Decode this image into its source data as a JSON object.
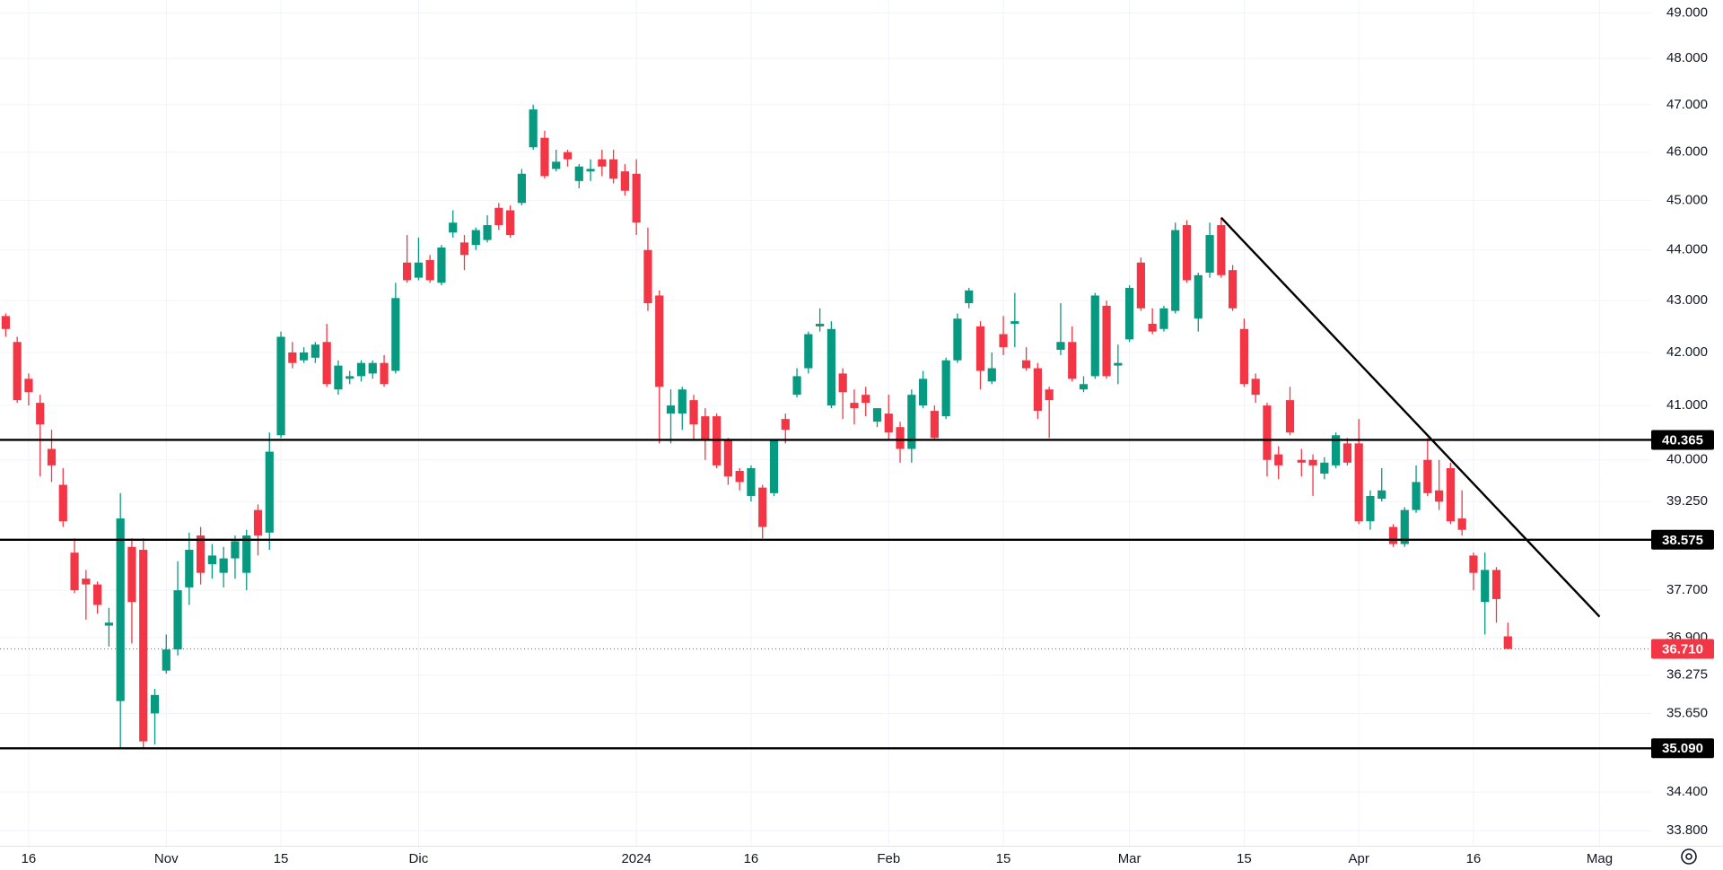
{
  "chart_data": {
    "type": "candlestick",
    "log_scale": true,
    "grid": true,
    "up_color": "#089981",
    "down_color": "#f23645",
    "categories": [
      null,
      null,
      "16",
      null,
      null,
      null,
      null,
      null,
      null,
      null,
      null,
      null,
      null,
      null,
      "Nov",
      null,
      null,
      null,
      null,
      null,
      null,
      null,
      null,
      null,
      "15",
      null,
      null,
      null,
      null,
      null,
      null,
      null,
      null,
      null,
      null,
      null,
      "Dic",
      null,
      null,
      null,
      null,
      null,
      null,
      null,
      null,
      null,
      null,
      null,
      null,
      null,
      null,
      null,
      null,
      null,
      null,
      "2024",
      null,
      null,
      null,
      null,
      null,
      null,
      null,
      null,
      null,
      "16",
      null,
      null,
      null,
      null,
      null,
      null,
      null,
      null,
      null,
      null,
      null,
      "Feb",
      null,
      null,
      null,
      null,
      null,
      null,
      null,
      null,
      null,
      "15",
      null,
      null,
      null,
      null,
      null,
      null,
      null,
      null,
      null,
      null,
      "Mar",
      null,
      null,
      null,
      null,
      null,
      null,
      null,
      null,
      null,
      "15",
      null,
      null,
      null,
      null,
      null,
      null,
      null,
      null,
      null,
      "Apr",
      null,
      null,
      null,
      null,
      null,
      null,
      null,
      null,
      null,
      "16",
      null,
      null,
      null,
      null,
      null,
      null,
      null,
      null,
      null,
      null,
      "Mag",
      null,
      null,
      null,
      null
    ],
    "open": [
      42.7,
      42.2,
      41.5,
      41.05,
      40.2,
      39.55,
      38.35,
      37.9,
      37.8,
      37.1,
      35.85,
      38.45,
      38.4,
      35.65,
      36.35,
      36.7,
      37.75,
      38.65,
      38.15,
      38.0,
      38.25,
      38.0,
      39.1,
      38.7,
      40.45,
      42.0,
      41.85,
      41.9,
      42.2,
      41.3,
      41.5,
      41.55,
      41.6,
      41.8,
      41.65,
      43.75,
      43.45,
      43.8,
      43.35,
      44.35,
      44.15,
      44.1,
      44.2,
      44.85,
      44.8,
      44.95,
      46.1,
      46.3,
      45.65,
      46.0,
      45.4,
      45.6,
      45.85,
      45.85,
      45.6,
      45.55,
      44.0,
      43.1,
      40.85,
      40.85,
      41.1,
      40.8,
      40.8,
      40.35,
      39.8,
      39.35,
      39.5,
      39.4,
      40.75,
      41.2,
      41.7,
      42.5,
      41.0,
      41.6,
      41.05,
      41.2,
      40.7,
      40.85,
      40.6,
      40.2,
      41.0,
      40.9,
      40.8,
      41.85,
      42.95,
      42.5,
      41.45,
      42.35,
      42.55,
      41.85,
      41.7,
      41.3,
      42.05,
      42.2,
      41.3,
      41.55,
      42.9,
      41.75,
      42.25,
      43.75,
      42.55,
      42.45,
      42.8,
      44.5,
      42.65,
      43.55,
      44.5,
      43.6,
      42.45,
      41.5,
      41.0,
      40.1,
      41.1,
      40.0,
      40.0,
      39.75,
      39.9,
      40.3,
      40.3,
      38.9,
      39.3,
      38.8,
      38.5,
      39.1,
      40.0,
      39.45,
      39.85,
      38.95,
      38.3,
      37.5,
      38.05,
      36.92,
      null,
      null,
      null,
      null,
      null,
      null,
      null,
      null,
      null,
      null,
      null,
      null
    ],
    "high": [
      42.75,
      42.3,
      41.6,
      41.2,
      40.55,
      39.85,
      38.6,
      38.05,
      37.85,
      37.4,
      39.4,
      38.6,
      38.6,
      36.05,
      36.95,
      38.2,
      38.7,
      38.8,
      38.5,
      38.45,
      38.65,
      38.75,
      39.2,
      40.5,
      42.4,
      42.2,
      42.1,
      42.2,
      42.55,
      41.85,
      41.65,
      41.85,
      41.85,
      41.95,
      43.35,
      44.3,
      44.25,
      43.9,
      44.1,
      44.8,
      44.3,
      44.45,
      44.7,
      44.95,
      44.9,
      45.65,
      47.0,
      46.45,
      46.05,
      46.05,
      45.75,
      45.85,
      46.05,
      46.05,
      45.75,
      45.85,
      44.45,
      43.2,
      41.3,
      41.35,
      41.2,
      40.95,
      40.85,
      40.4,
      39.85,
      39.9,
      39.55,
      40.35,
      40.85,
      41.7,
      42.4,
      42.85,
      42.6,
      41.7,
      41.3,
      41.35,
      40.95,
      41.2,
      40.7,
      41.3,
      41.65,
      41.0,
      41.9,
      42.75,
      43.25,
      42.6,
      42.0,
      42.7,
      43.15,
      42.1,
      41.8,
      41.35,
      42.95,
      42.5,
      41.55,
      43.15,
      43.0,
      42.15,
      43.3,
      43.85,
      42.85,
      42.9,
      44.55,
      44.6,
      43.55,
      44.55,
      44.65,
      43.7,
      42.65,
      41.6,
      41.05,
      40.25,
      41.35,
      40.2,
      40.1,
      40.05,
      40.5,
      40.4,
      40.75,
      39.45,
      39.85,
      38.85,
      39.15,
      39.9,
      40.4,
      40.0,
      39.95,
      39.45,
      38.35,
      38.35,
      38.1,
      37.15,
      null,
      null,
      null,
      null,
      null,
      null,
      null,
      null,
      null,
      null,
      null,
      null
    ],
    "low": [
      42.3,
      41.05,
      41.0,
      39.7,
      39.6,
      38.8,
      37.65,
      37.2,
      37.3,
      36.75,
      35.1,
      36.8,
      35.1,
      35.15,
      36.3,
      36.6,
      37.45,
      37.8,
      37.9,
      37.75,
      37.9,
      37.7,
      38.3,
      38.4,
      40.4,
      41.7,
      41.8,
      41.8,
      41.35,
      41.2,
      41.4,
      41.45,
      41.5,
      41.35,
      41.6,
      43.35,
      43.4,
      43.35,
      43.3,
      44.25,
      43.6,
      44.0,
      44.15,
      44.4,
      44.25,
      44.9,
      46.05,
      45.45,
      45.6,
      45.7,
      45.25,
      45.4,
      45.5,
      45.35,
      45.1,
      44.3,
      42.8,
      40.3,
      40.3,
      40.55,
      40.35,
      40.0,
      39.85,
      39.55,
      39.45,
      39.25,
      38.6,
      39.35,
      40.3,
      41.15,
      41.6,
      42.4,
      40.95,
      40.75,
      40.65,
      40.8,
      40.6,
      40.35,
      39.95,
      39.95,
      40.95,
      40.35,
      40.75,
      41.8,
      42.85,
      41.3,
      41.4,
      41.95,
      42.1,
      41.65,
      40.75,
      40.4,
      41.95,
      41.45,
      41.25,
      41.5,
      41.5,
      41.4,
      42.2,
      42.8,
      42.35,
      42.4,
      42.75,
      43.35,
      42.4,
      43.45,
      43.45,
      42.8,
      41.35,
      41.05,
      39.7,
      39.65,
      40.45,
      39.7,
      39.35,
      39.65,
      39.85,
      39.9,
      38.85,
      38.75,
      39.25,
      38.45,
      38.45,
      39.05,
      39.35,
      39.1,
      38.85,
      38.65,
      37.7,
      36.95,
      37.15,
      36.7,
      null,
      null,
      null,
      null,
      null,
      null,
      null,
      null,
      null,
      null,
      null,
      null
    ],
    "close": [
      42.45,
      41.1,
      41.25,
      40.65,
      39.9,
      38.9,
      37.7,
      37.8,
      37.45,
      37.15,
      38.95,
      37.5,
      35.2,
      35.95,
      36.7,
      37.7,
      38.4,
      38.0,
      38.3,
      38.25,
      38.55,
      38.65,
      38.65,
      40.15,
      42.3,
      41.8,
      42.0,
      42.15,
      41.4,
      41.75,
      41.55,
      41.8,
      41.8,
      41.4,
      43.05,
      43.4,
      43.75,
      43.4,
      44.05,
      44.55,
      43.9,
      44.4,
      44.5,
      44.5,
      44.3,
      45.55,
      46.9,
      45.5,
      45.8,
      45.85,
      45.7,
      45.65,
      45.7,
      45.45,
      45.2,
      44.55,
      42.95,
      41.35,
      41.0,
      41.3,
      40.65,
      40.35,
      39.9,
      39.7,
      39.6,
      39.85,
      38.8,
      40.35,
      40.55,
      41.55,
      42.35,
      42.55,
      42.45,
      41.25,
      40.95,
      41.05,
      40.95,
      40.5,
      40.2,
      41.2,
      41.5,
      40.4,
      41.85,
      42.65,
      43.2,
      41.65,
      41.7,
      42.1,
      42.6,
      41.7,
      40.9,
      41.1,
      42.2,
      41.5,
      41.4,
      43.1,
      41.55,
      41.8,
      43.25,
      42.85,
      42.4,
      42.85,
      44.4,
      43.4,
      43.5,
      44.3,
      43.5,
      42.85,
      41.4,
      41.2,
      40.0,
      39.9,
      40.5,
      39.95,
      39.9,
      39.95,
      40.45,
      39.95,
      38.9,
      39.35,
      39.45,
      38.5,
      39.1,
      39.6,
      39.4,
      39.25,
      38.9,
      38.75,
      38.0,
      38.05,
      37.55,
      36.71,
      null,
      null,
      null,
      null,
      null,
      null,
      null,
      null,
      null,
      null,
      null,
      null
    ],
    "ylim": [
      33.57,
      49.29
    ],
    "yticks": [
      {
        "value": 49,
        "label": "49.000"
      },
      {
        "value": 48,
        "label": "48.000"
      },
      {
        "value": 47,
        "label": "47.000"
      },
      {
        "value": 46,
        "label": "46.000"
      },
      {
        "value": 45,
        "label": "45.000"
      },
      {
        "value": 44,
        "label": "44.000"
      },
      {
        "value": 43,
        "label": "43.000"
      },
      {
        "value": 42,
        "label": "42.000"
      },
      {
        "value": 41,
        "label": "41.000"
      },
      {
        "value": 40,
        "label": "40.000"
      },
      {
        "value": 39.25,
        "label": "39.250"
      },
      {
        "value": 37.7,
        "label": "37.700"
      },
      {
        "value": 36.9,
        "label": "36.900"
      },
      {
        "value": 36.275,
        "label": "36.275"
      },
      {
        "value": 35.65,
        "label": "35.650"
      },
      {
        "value": 34.4,
        "label": "34.400"
      },
      {
        "value": 33.8,
        "label": "33.800"
      }
    ],
    "levels": [
      {
        "value": 40.365,
        "label": "40.365"
      },
      {
        "value": 38.575,
        "label": "38.575"
      },
      {
        "value": 35.09,
        "label": "35.090"
      }
    ],
    "level_color": "#000000",
    "last_price": {
      "value": 36.71,
      "label": "36.710"
    },
    "trend_line": {
      "x": [
        106,
        139
      ],
      "y": [
        44.65,
        37.25
      ],
      "color": "#000000"
    }
  }
}
